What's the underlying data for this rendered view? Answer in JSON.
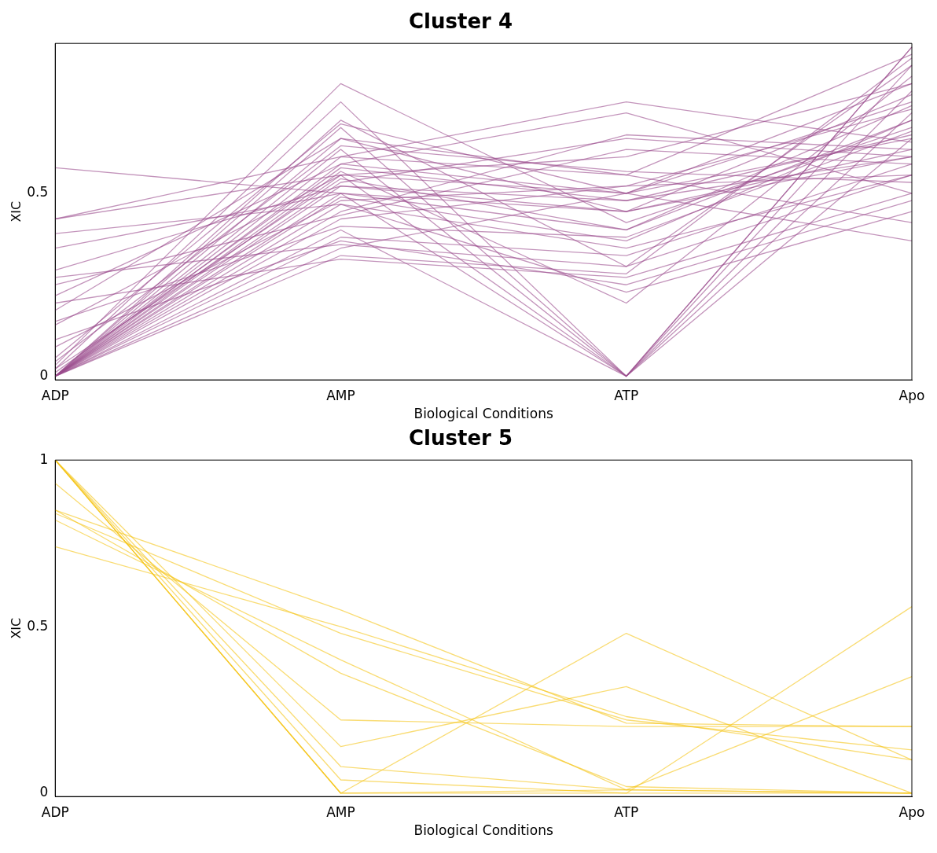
{
  "chart_data": [
    {
      "type": "line",
      "title": "Cluster 4",
      "xlabel": "Biological Conditions",
      "ylabel": "XIC",
      "categories": [
        "ADP",
        "AMP",
        "ATP",
        "Apo"
      ],
      "ylim": [
        -0.01,
        0.91
      ],
      "yticks": [
        0,
        0.5
      ],
      "grid": false,
      "legend": false,
      "marker": "none",
      "series": [
        {
          "color": "#9b4d8d",
          "values": [
            0.57,
            0.5,
            0.45,
            0.6
          ]
        },
        {
          "color": "#9b4d8d",
          "values": [
            0.43,
            0.55,
            0.5,
            0.65
          ]
        },
        {
          "color": "#9b4d8d",
          "values": [
            0.43,
            0.6,
            0.55,
            0.42
          ]
        },
        {
          "color": "#9b4d8d",
          "values": [
            0.39,
            0.47,
            0.35,
            0.55
          ]
        },
        {
          "color": "#9b4d8d",
          "values": [
            0.35,
            0.5,
            0.4,
            0.7
          ]
        },
        {
          "color": "#9b4d8d",
          "values": [
            0.29,
            0.52,
            0.48,
            0.6
          ]
        },
        {
          "color": "#9b4d8d",
          "values": [
            0.27,
            0.36,
            0.3,
            0.55
          ]
        },
        {
          "color": "#9b4d8d",
          "values": [
            0.25,
            0.44,
            0.62,
            0.58
          ]
        },
        {
          "color": "#9b4d8d",
          "values": [
            0.22,
            0.58,
            0.5,
            0.75
          ]
        },
        {
          "color": "#9b4d8d",
          "values": [
            0.2,
            0.32,
            0.27,
            0.5
          ]
        },
        {
          "color": "#9b4d8d",
          "values": [
            0.18,
            0.65,
            0.45,
            0.62
          ]
        },
        {
          "color": "#9b4d8d",
          "values": [
            0.15,
            0.41,
            0.38,
            0.67
          ]
        },
        {
          "color": "#9b4d8d",
          "values": [
            0.14,
            0.55,
            0.6,
            0.8
          ]
        },
        {
          "color": "#9b4d8d",
          "values": [
            0.1,
            0.37,
            0.25,
            0.48
          ]
        },
        {
          "color": "#9b4d8d",
          "values": [
            0.08,
            0.48,
            0.52,
            0.55
          ]
        },
        {
          "color": "#9b4d8d",
          "values": [
            0.05,
            0.69,
            0.5,
            0.37
          ]
        },
        {
          "color": "#9b4d8d",
          "values": [
            0.03,
            0.8,
            0.42,
            0.68
          ]
        },
        {
          "color": "#9b4d8d",
          "values": [
            0.02,
            0.75,
            0,
            0.72
          ]
        },
        {
          "color": "#9b4d8d",
          "values": [
            0,
            0.7,
            0.3,
            0.85
          ]
        },
        {
          "color": "#9b4d8d",
          "values": [
            0,
            0.68,
            0,
            0.9
          ]
        },
        {
          "color": "#9b4d8d",
          "values": [
            0,
            0.65,
            0.55,
            0.88
          ]
        },
        {
          "color": "#9b4d8d",
          "values": [
            0,
            0.62,
            0,
            0.78
          ]
        },
        {
          "color": "#9b4d8d",
          "values": [
            0,
            0.6,
            0.75,
            0.64
          ]
        },
        {
          "color": "#9b4d8d",
          "values": [
            0,
            0.58,
            0.72,
            0.5
          ]
        },
        {
          "color": "#9b4d8d",
          "values": [
            0,
            0.56,
            0.2,
            0.82
          ]
        },
        {
          "color": "#9b4d8d",
          "values": [
            0,
            0.55,
            0,
            0.9
          ]
        },
        {
          "color": "#9b4d8d",
          "values": [
            0,
            0.53,
            0.65,
            0.6
          ]
        },
        {
          "color": "#9b4d8d",
          "values": [
            0,
            0.52,
            0.45,
            0.77
          ]
        },
        {
          "color": "#9b4d8d",
          "values": [
            0,
            0.5,
            0,
            0.85
          ]
        },
        {
          "color": "#9b4d8d",
          "values": [
            0,
            0.49,
            0.37,
            0.7
          ]
        },
        {
          "color": "#9b4d8d",
          "values": [
            0,
            0.47,
            0.23,
            0.45
          ]
        },
        {
          "color": "#9b4d8d",
          "values": [
            0,
            0.45,
            0.66,
            0.62
          ]
        },
        {
          "color": "#9b4d8d",
          "values": [
            0,
            0.43,
            0.52,
            0.73
          ]
        },
        {
          "color": "#9b4d8d",
          "values": [
            0,
            0.4,
            0,
            0.65
          ]
        },
        {
          "color": "#9b4d8d",
          "values": [
            0,
            0.38,
            0.33,
            0.58
          ]
        },
        {
          "color": "#9b4d8d",
          "values": [
            0,
            0.35,
            0.5,
            0.8
          ]
        },
        {
          "color": "#9b4d8d",
          "values": [
            0,
            0.33,
            0.28,
            0.87
          ]
        },
        {
          "color": "#9b4d8d",
          "values": [
            0.01,
            0.57,
            0.48,
            0.66
          ]
        },
        {
          "color": "#9b4d8d",
          "values": [
            0.02,
            0.54,
            0.4,
            0.74
          ]
        },
        {
          "color": "#9b4d8d",
          "values": [
            0.04,
            0.63,
            0.56,
            0.53
          ]
        }
      ]
    },
    {
      "type": "line",
      "title": "Cluster 5",
      "xlabel": "Biological Conditions",
      "ylabel": "XIC",
      "categories": [
        "ADP",
        "AMP",
        "ATP",
        "Apo"
      ],
      "ylim": [
        -0.01,
        1
      ],
      "yticks": [
        0,
        0.5,
        1
      ],
      "grid": false,
      "legend": false,
      "marker": "none",
      "series": [
        {
          "color": "#f5c518",
          "values": [
            0.85,
            0.55,
            0.21,
            0.2
          ]
        },
        {
          "color": "#f5c518",
          "values": [
            0.84,
            0.48,
            0.22,
            0.13
          ]
        },
        {
          "color": "#f5c518",
          "values": [
            0.82,
            0.4,
            0.01,
            0
          ]
        },
        {
          "color": "#f5c518",
          "values": [
            0.74,
            0.5,
            0.23,
            0.1
          ]
        },
        {
          "color": "#f5c518",
          "values": [
            0.93,
            0.22,
            0.2,
            0.2
          ]
        },
        {
          "color": "#f5c518",
          "values": [
            1,
            0.14,
            0.32,
            0
          ]
        },
        {
          "color": "#f5c518",
          "values": [
            1,
            0.08,
            0.01,
            0.35
          ]
        },
        {
          "color": "#f5c518",
          "values": [
            1,
            0.04,
            0,
            0.56
          ]
        },
        {
          "color": "#f5c518",
          "values": [
            1,
            0,
            0.48,
            0.1
          ]
        },
        {
          "color": "#f5c518",
          "values": [
            1,
            0,
            0,
            0
          ]
        },
        {
          "color": "#f5c518",
          "values": [
            1,
            0,
            0.01,
            0
          ]
        },
        {
          "color": "#f5c518",
          "values": [
            0.85,
            0.36,
            0.02,
            0
          ]
        }
      ]
    }
  ]
}
